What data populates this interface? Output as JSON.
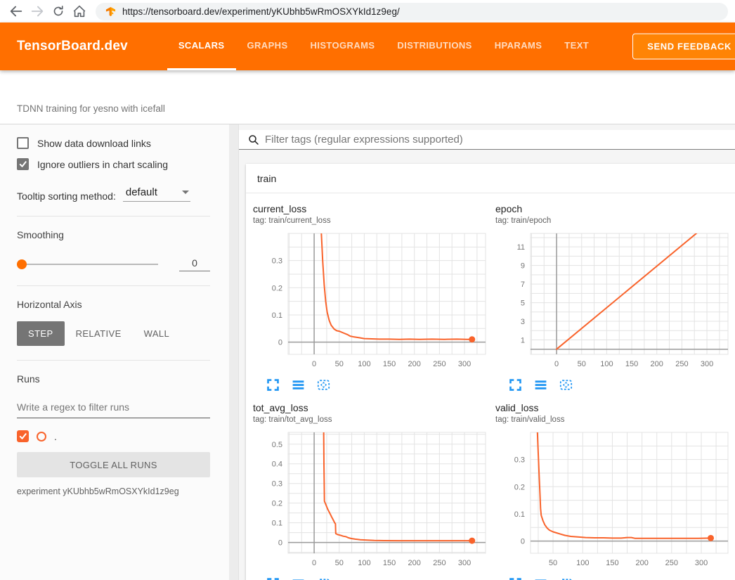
{
  "browser": {
    "url": "https://tensorboard.dev/experiment/yKUbhb5wRmOSXYkId1z9eg/",
    "icons": [
      "back-arrow-icon",
      "forward-arrow-icon",
      "reload-icon",
      "home-icon",
      "tensorboard-favicon"
    ]
  },
  "header": {
    "brand": "TensorBoard.dev",
    "tabs": [
      {
        "label": "SCALARS",
        "active": true
      },
      {
        "label": "GRAPHS",
        "active": false
      },
      {
        "label": "HISTOGRAMS",
        "active": false
      },
      {
        "label": "DISTRIBUTIONS",
        "active": false
      },
      {
        "label": "HPARAMS",
        "active": false
      },
      {
        "label": "TEXT",
        "active": false
      }
    ],
    "feedback_button": "SEND FEEDBACK"
  },
  "experiment_bar": {
    "title": "TDNN training for yesno with icefall"
  },
  "sidebar": {
    "show_download": {
      "label": "Show data download links",
      "checked": false
    },
    "ignore_outliers": {
      "label": "Ignore outliers in chart scaling",
      "checked": true
    },
    "tooltip_sorting": {
      "label": "Tooltip sorting method:",
      "value": "default"
    },
    "smoothing": {
      "label": "Smoothing",
      "value": "0"
    },
    "horizontal_axis": {
      "label": "Horizontal Axis",
      "options": [
        "STEP",
        "RELATIVE",
        "WALL"
      ],
      "selected": "STEP"
    },
    "runs": {
      "label": "Runs",
      "filter_placeholder": "Write a regex to filter runs",
      "items": [
        {
          "name": ".",
          "checked": true,
          "color": "#f9632b"
        }
      ],
      "toggle_all": "TOGGLE ALL RUNS",
      "experiment": "experiment yKUbhb5wRmOSXYkId1z9eg"
    }
  },
  "main": {
    "filter_placeholder": "Filter tags (regular expressions supported)",
    "group": "train",
    "chart_action_icons": [
      "expand-icon",
      "log-scale-icon",
      "fit-domain-icon"
    ]
  },
  "colors": {
    "header_bg": "#ff6f00",
    "run_color": "#f9632b",
    "icon_blue": "#2196f3",
    "grid": "#e3e3e3",
    "zero_axis": "#9a9a9a",
    "tick_text": "#757575"
  },
  "chart_data": [
    {
      "type": "line",
      "title": "current_loss",
      "tag": "tag: train/current_loss",
      "xlim": [
        -52,
        342
      ],
      "ylim": [
        -0.045,
        0.4
      ],
      "xticks": [
        0,
        50,
        100,
        150,
        200,
        250,
        300
      ],
      "xminor": 25,
      "yticks": [
        0,
        0.1,
        0.2,
        0.3
      ],
      "yminor": 0.05,
      "series": [
        {
          "name": ".",
          "color": "#f9632b",
          "end_dot": true,
          "points": [
            [
              13,
              0.45
            ],
            [
              17,
              0.3
            ],
            [
              20,
              0.21
            ],
            [
              23,
              0.15
            ],
            [
              26,
              0.11
            ],
            [
              30,
              0.08
            ],
            [
              34,
              0.062
            ],
            [
              40,
              0.048
            ],
            [
              45,
              0.042
            ],
            [
              50,
              0.04
            ],
            [
              58,
              0.034
            ],
            [
              66,
              0.028
            ],
            [
              72,
              0.022
            ],
            [
              80,
              0.019
            ],
            [
              90,
              0.016
            ],
            [
              100,
              0.013
            ],
            [
              115,
              0.012
            ],
            [
              130,
              0.011
            ],
            [
              150,
              0.011
            ],
            [
              170,
              0.01
            ],
            [
              190,
              0.011
            ],
            [
              210,
              0.01
            ],
            [
              235,
              0.011
            ],
            [
              260,
              0.01
            ],
            [
              285,
              0.011
            ],
            [
              305,
              0.01
            ],
            [
              315,
              0.01
            ]
          ]
        }
      ]
    },
    {
      "type": "line",
      "title": "epoch",
      "tag": "tag: train/epoch",
      "xlim": [
        -52,
        342
      ],
      "ylim": [
        -0.55,
        12.45
      ],
      "xticks": [
        0,
        50,
        100,
        150,
        200,
        250,
        300
      ],
      "xminor": 25,
      "yticks": [
        1,
        3,
        5,
        7,
        9,
        11
      ],
      "yminor": 1,
      "series": [
        {
          "name": ".",
          "color": "#f9632b",
          "end_dot": false,
          "points": [
            [
              0,
              0
            ],
            [
              315,
              14.06
            ]
          ]
        }
      ]
    },
    {
      "type": "line",
      "title": "tot_avg_loss",
      "tag": "tag: train/tot_avg_loss",
      "xlim": [
        -52,
        342
      ],
      "ylim": [
        -0.055,
        0.56
      ],
      "xticks": [
        0,
        50,
        100,
        150,
        200,
        250,
        300
      ],
      "xminor": 25,
      "yticks": [
        0,
        0.1,
        0.2,
        0.3,
        0.4,
        0.5
      ],
      "yminor": 0.05,
      "series": [
        {
          "name": ".",
          "color": "#f9632b",
          "end_dot": true,
          "points": [
            [
              19,
              0.58
            ],
            [
              19.5,
              0.4
            ],
            [
              20,
              0.3
            ],
            [
              20.5,
              0.21
            ],
            [
              23,
              0.195
            ],
            [
              27,
              0.17
            ],
            [
              31,
              0.15
            ],
            [
              35,
              0.13
            ],
            [
              38,
              0.115
            ],
            [
              41,
              0.1
            ],
            [
              42.5,
              0.095
            ],
            [
              43,
              0.045
            ],
            [
              47,
              0.04
            ],
            [
              52,
              0.037
            ],
            [
              58,
              0.032
            ],
            [
              62,
              0.03
            ],
            [
              64,
              0.029
            ],
            [
              68,
              0.024
            ],
            [
              74,
              0.02
            ],
            [
              82,
              0.017
            ],
            [
              92,
              0.014
            ],
            [
              105,
              0.012
            ],
            [
              120,
              0.01
            ],
            [
              140,
              0.0095
            ],
            [
              170,
              0.009
            ],
            [
              200,
              0.009
            ],
            [
              240,
              0.009
            ],
            [
              280,
              0.009
            ],
            [
              315,
              0.009
            ]
          ]
        }
      ]
    },
    {
      "type": "line",
      "title": "valid_loss",
      "tag": "tag: train/valid_loss",
      "xlim": [
        12,
        345
      ],
      "ylim": [
        -0.045,
        0.4
      ],
      "xticks": [
        50,
        100,
        150,
        200,
        250,
        300
      ],
      "xminor": 25,
      "yticks": [
        0,
        0.1,
        0.2,
        0.3
      ],
      "yminor": 0.05,
      "series": [
        {
          "name": ".",
          "color": "#f9632b",
          "end_dot": true,
          "points": [
            [
              22,
              0.5
            ],
            [
              24,
              0.38
            ],
            [
              26,
              0.27
            ],
            [
              28,
              0.17
            ],
            [
              29,
              0.12
            ],
            [
              30,
              0.095
            ],
            [
              33,
              0.075
            ],
            [
              36,
              0.06
            ],
            [
              40,
              0.048
            ],
            [
              44,
              0.04
            ],
            [
              50,
              0.034
            ],
            [
              56,
              0.03
            ],
            [
              62,
              0.026
            ],
            [
              70,
              0.021
            ],
            [
              80,
              0.017
            ],
            [
              92,
              0.015
            ],
            [
              105,
              0.013
            ],
            [
              120,
              0.012
            ],
            [
              135,
              0.012
            ],
            [
              150,
              0.011
            ],
            [
              165,
              0.011
            ],
            [
              175,
              0.013
            ],
            [
              182,
              0.013
            ],
            [
              188,
              0.01
            ],
            [
              200,
              0.01
            ],
            [
              220,
              0.01
            ],
            [
              245,
              0.01
            ],
            [
              270,
              0.01
            ],
            [
              295,
              0.01
            ],
            [
              316,
              0.011
            ]
          ]
        }
      ]
    }
  ]
}
